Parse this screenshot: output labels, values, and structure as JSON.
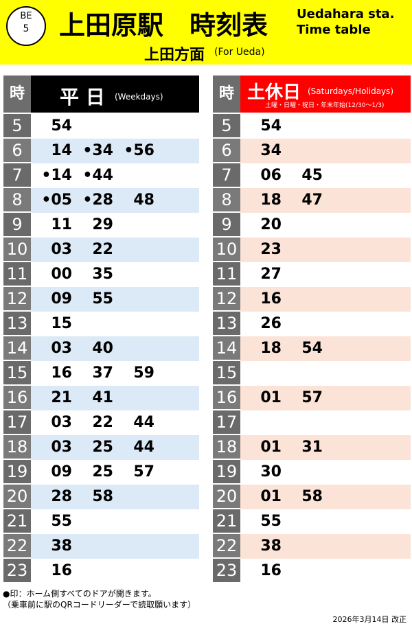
{
  "header": {
    "badge_line1": "BE",
    "badge_line2": "5",
    "title": "上田原駅　時刻表",
    "title_en_line1": "Uedahara sta.",
    "title_en_line2": "Time table",
    "direction": "上田方面",
    "direction_en": "(For Ueda)"
  },
  "hours": [
    "5",
    "6",
    "7",
    "8",
    "9",
    "10",
    "11",
    "12",
    "13",
    "14",
    "15",
    "16",
    "17",
    "18",
    "19",
    "20",
    "21",
    "22",
    "23"
  ],
  "weekday": {
    "hour_header": "時",
    "title": "平 日",
    "subtitle": "(Weekdays)",
    "rows": [
      [
        "54"
      ],
      [
        "14",
        "•34",
        "•56"
      ],
      [
        "•14",
        "•44"
      ],
      [
        "•05",
        "•28",
        "48"
      ],
      [
        "11",
        "29"
      ],
      [
        "03",
        "22"
      ],
      [
        "00",
        "35"
      ],
      [
        "09",
        "55"
      ],
      [
        "15"
      ],
      [
        "03",
        "40"
      ],
      [
        "16",
        "37",
        "59"
      ],
      [
        "21",
        "41"
      ],
      [
        "03",
        "22",
        "44"
      ],
      [
        "03",
        "25",
        "44"
      ],
      [
        "09",
        "25",
        "57"
      ],
      [
        "28",
        "58"
      ],
      [
        "55"
      ],
      [
        "38"
      ],
      [
        "16"
      ]
    ]
  },
  "holiday": {
    "hour_header": "時",
    "title": "土休日",
    "subtitle": "(Saturdays/Holidays)",
    "note": "土曜・日曜・祝日・年末年始(12/30～1/3)",
    "rows": [
      [
        "54"
      ],
      [
        "34"
      ],
      [
        "06",
        "45"
      ],
      [
        "18",
        "47"
      ],
      [
        "20"
      ],
      [
        "23"
      ],
      [
        "27"
      ],
      [
        "16"
      ],
      [
        "26"
      ],
      [
        "18",
        "54"
      ],
      [],
      [
        "01",
        "57"
      ],
      [],
      [
        "01",
        "31"
      ],
      [
        "30"
      ],
      [
        "01",
        "58"
      ],
      [
        "55"
      ],
      [
        "38"
      ],
      [
        "16"
      ]
    ]
  },
  "footer": {
    "note_line1": "●印：ホーム側すべてのドアが開きます。",
    "note_line2": "（乗車前に駅のQRコードリーダーで読取願います）",
    "revision": "2026年3月14日 改正"
  }
}
